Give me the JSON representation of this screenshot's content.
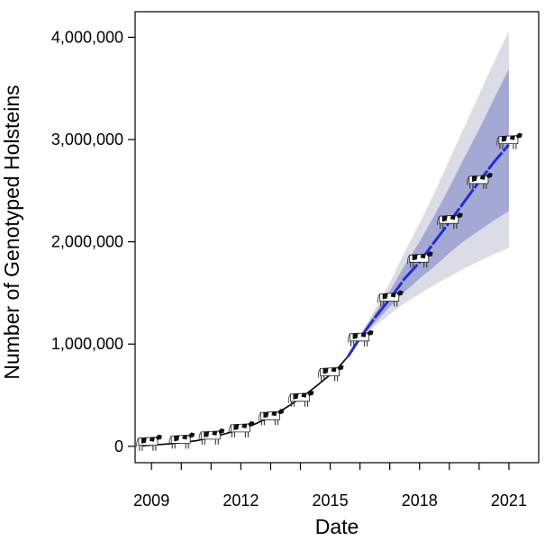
{
  "chart_data": {
    "type": "line",
    "title": "",
    "xlabel": "Date",
    "ylabel": "Number of Genotyped Holsteins",
    "x_ticks": [
      {
        "value": 2009,
        "label": "2009"
      },
      {
        "value": 2012,
        "label": "2012"
      },
      {
        "value": 2015,
        "label": "2015"
      },
      {
        "value": 2018,
        "label": "2018"
      },
      {
        "value": 2021,
        "label": "2021"
      }
    ],
    "x_minor_ticks": [
      2010,
      2011,
      2013,
      2014,
      2016,
      2017,
      2019,
      2020
    ],
    "y_ticks": [
      {
        "value": 0,
        "label": "0"
      },
      {
        "value": 1000000,
        "label": "1,000,000"
      },
      {
        "value": 2000000,
        "label": "2,000,000"
      },
      {
        "value": 3000000,
        "label": "3,000,000"
      },
      {
        "value": 4000000,
        "label": "4,000,000"
      }
    ],
    "xlim": [
      2008.45,
      2022.0
    ],
    "ylim": [
      -160000,
      4250000
    ],
    "grid": false,
    "legend": "none",
    "series": [
      {
        "role": "observed",
        "color": "#000000",
        "style": "solid",
        "x": [
          2008.7,
          2009.0,
          2009.5,
          2010.0,
          2010.5,
          2011.0,
          2011.5,
          2012.0,
          2012.5,
          2013.0,
          2013.5,
          2014.0,
          2014.5,
          2015.0,
          2015.3,
          2015.6
        ],
        "y": [
          5000,
          12000,
          22000,
          35000,
          55000,
          85000,
          125000,
          165000,
          220000,
          290000,
          375000,
          470000,
          580000,
          700000,
          780000,
          880000
        ]
      },
      {
        "role": "forecast",
        "color": "#1e2fd6",
        "style": "dashed",
        "x": [
          2015.6,
          2016.0,
          2016.5,
          2017.0,
          2017.5,
          2018.0,
          2018.5,
          2019.0,
          2019.5,
          2020.0,
          2020.5,
          2021.0
        ],
        "y": [
          880000,
          1060000,
          1260000,
          1440000,
          1640000,
          1800000,
          2000000,
          2190000,
          2390000,
          2590000,
          2780000,
          2950000
        ]
      }
    ],
    "bands": [
      {
        "role": "outer-interval",
        "color": "#dcdce6",
        "x": [
          2015.6,
          2016.0,
          2016.5,
          2017.0,
          2017.5,
          2018.0,
          2018.5,
          2019.0,
          2019.5,
          2020.0,
          2020.5,
          2021.0
        ],
        "lower": [
          880000,
          1040000,
          1180000,
          1290000,
          1400000,
          1490000,
          1580000,
          1660000,
          1740000,
          1810000,
          1880000,
          1940000
        ],
        "upper": [
          880000,
          1080000,
          1340000,
          1600000,
          1900000,
          2180000,
          2480000,
          2800000,
          3120000,
          3440000,
          3760000,
          4060000
        ]
      },
      {
        "role": "inner-interval",
        "color": "#a3a9d3",
        "x": [
          2015.6,
          2016.0,
          2016.5,
          2017.0,
          2017.5,
          2018.0,
          2018.5,
          2019.0,
          2019.5,
          2020.0,
          2020.5,
          2021.0
        ],
        "lower": [
          880000,
          1050000,
          1210000,
          1360000,
          1510000,
          1640000,
          1760000,
          1890000,
          2010000,
          2110000,
          2210000,
          2300000
        ],
        "upper": [
          880000,
          1070000,
          1300000,
          1520000,
          1770000,
          2000000,
          2260000,
          2530000,
          2820000,
          3100000,
          3400000,
          3690000
        ]
      }
    ],
    "markers": {
      "icon": "cow-icon",
      "points": [
        {
          "x": 2008.9,
          "y": 10000
        },
        {
          "x": 2010.0,
          "y": 30000
        },
        {
          "x": 2011.0,
          "y": 70000
        },
        {
          "x": 2012.0,
          "y": 140000
        },
        {
          "x": 2013.0,
          "y": 260000
        },
        {
          "x": 2014.0,
          "y": 440000
        },
        {
          "x": 2015.0,
          "y": 690000
        },
        {
          "x": 2016.0,
          "y": 1030000
        },
        {
          "x": 2017.0,
          "y": 1420000
        },
        {
          "x": 2018.0,
          "y": 1800000
        },
        {
          "x": 2019.0,
          "y": 2180000
        },
        {
          "x": 2020.0,
          "y": 2570000
        },
        {
          "x": 2021.0,
          "y": 2960000
        }
      ]
    }
  }
}
